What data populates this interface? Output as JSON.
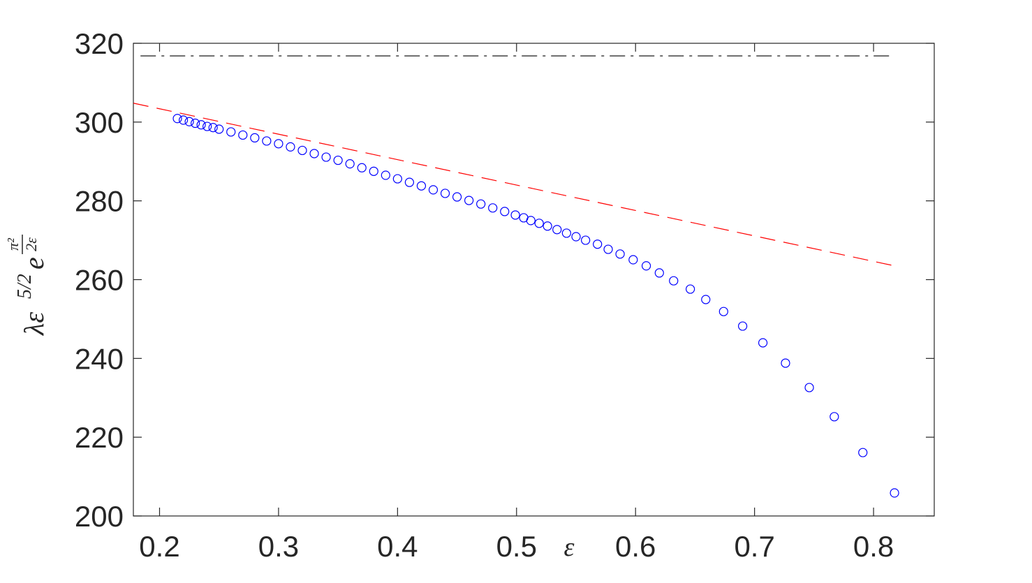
{
  "chart_data": {
    "type": "scatter",
    "xlabel": "ε",
    "ylabel": {
      "base": "λε",
      "power": "5/2",
      "exp_base": "e",
      "numerator": "π²",
      "denominator": "2ε"
    },
    "xlim": [
      0.178,
      0.851
    ],
    "xticks": [
      0.2,
      0.3,
      0.4,
      0.5,
      0.6,
      0.7,
      0.8
    ],
    "ylim": [
      200,
      320
    ],
    "yticks": [
      200,
      220,
      240,
      260,
      280,
      300,
      320
    ],
    "series": [
      {
        "kind": "markers",
        "color": "#0000ff",
        "x": [
          0.215,
          0.22,
          0.225,
          0.23,
          0.235,
          0.24,
          0.245,
          0.25,
          0.26,
          0.27,
          0.28,
          0.29,
          0.3,
          0.31,
          0.32,
          0.33,
          0.34,
          0.35,
          0.36,
          0.37,
          0.38,
          0.39,
          0.4,
          0.41,
          0.42,
          0.43,
          0.44,
          0.45,
          0.46,
          0.47,
          0.48,
          0.49,
          0.499,
          0.506,
          0.512,
          0.519,
          0.526,
          0.534,
          0.542,
          0.55,
          0.558,
          0.568,
          0.577,
          0.587,
          0.598,
          0.609,
          0.62,
          0.632,
          0.646,
          0.659,
          0.674,
          0.69,
          0.707,
          0.726,
          0.746,
          0.767,
          0.791,
          0.8176
        ],
        "values": [
          300.9,
          300.5,
          300.1,
          299.7,
          299.3,
          298.9,
          298.6,
          298.2,
          297.5,
          296.7,
          296.0,
          295.2,
          294.5,
          293.7,
          292.8,
          292.0,
          291.1,
          290.3,
          289.4,
          288.4,
          287.5,
          286.5,
          285.6,
          284.7,
          283.8,
          282.8,
          281.9,
          281.0,
          280.1,
          279.2,
          278.2,
          277.3,
          276.4,
          275.7,
          275.0,
          274.3,
          273.6,
          272.7,
          271.8,
          270.9,
          270.0,
          269.0,
          267.7,
          266.5,
          265.05,
          263.5,
          261.7,
          259.7,
          257.6,
          254.95,
          251.9,
          248.2,
          243.96,
          238.8,
          232.6,
          225.2,
          216.1,
          205.85
        ]
      },
      {
        "kind": "dashed",
        "color": "#ff0000",
        "x": [
          0.178,
          0.8176
        ],
        "values": [
          304.8,
          263.5
        ]
      },
      {
        "kind": "dashdot",
        "color": "#000000",
        "x": [
          0.184,
          0.8176
        ],
        "values": [
          316.8,
          316.8
        ]
      }
    ]
  }
}
